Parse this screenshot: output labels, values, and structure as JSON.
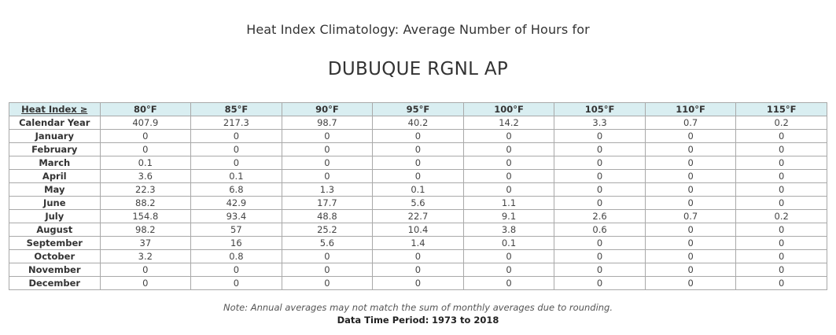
{
  "heading": "Heat Index Climatology: Average Number of Hours for",
  "station": "DUBUQUE RGNL AP",
  "table": {
    "corner_label": "Heat Index ≥",
    "columns": [
      "80°F",
      "85°F",
      "90°F",
      "95°F",
      "100°F",
      "105°F",
      "110°F",
      "115°F"
    ],
    "rows": [
      {
        "label": "Calendar Year",
        "values": [
          "407.9",
          "217.3",
          "98.7",
          "40.2",
          "14.2",
          "3.3",
          "0.7",
          "0.2"
        ]
      },
      {
        "label": "January",
        "values": [
          "0",
          "0",
          "0",
          "0",
          "0",
          "0",
          "0",
          "0"
        ]
      },
      {
        "label": "February",
        "values": [
          "0",
          "0",
          "0",
          "0",
          "0",
          "0",
          "0",
          "0"
        ]
      },
      {
        "label": "March",
        "values": [
          "0.1",
          "0",
          "0",
          "0",
          "0",
          "0",
          "0",
          "0"
        ]
      },
      {
        "label": "April",
        "values": [
          "3.6",
          "0.1",
          "0",
          "0",
          "0",
          "0",
          "0",
          "0"
        ]
      },
      {
        "label": "May",
        "values": [
          "22.3",
          "6.8",
          "1.3",
          "0.1",
          "0",
          "0",
          "0",
          "0"
        ]
      },
      {
        "label": "June",
        "values": [
          "88.2",
          "42.9",
          "17.7",
          "5.6",
          "1.1",
          "0",
          "0",
          "0"
        ]
      },
      {
        "label": "July",
        "values": [
          "154.8",
          "93.4",
          "48.8",
          "22.7",
          "9.1",
          "2.6",
          "0.7",
          "0.2"
        ]
      },
      {
        "label": "August",
        "values": [
          "98.2",
          "57",
          "25.2",
          "10.4",
          "3.8",
          "0.6",
          "0",
          "0"
        ]
      },
      {
        "label": "September",
        "values": [
          "37",
          "16",
          "5.6",
          "1.4",
          "0.1",
          "0",
          "0",
          "0"
        ]
      },
      {
        "label": "October",
        "values": [
          "3.2",
          "0.8",
          "0",
          "0",
          "0",
          "0",
          "0",
          "0"
        ]
      },
      {
        "label": "November",
        "values": [
          "0",
          "0",
          "0",
          "0",
          "0",
          "0",
          "0",
          "0"
        ]
      },
      {
        "label": "December",
        "values": [
          "0",
          "0",
          "0",
          "0",
          "0",
          "0",
          "0",
          "0"
        ]
      }
    ]
  },
  "note": "Note: Annual averages may not match the sum of monthly averages due to rounding.",
  "period": {
    "label": "Data Time Period:",
    "value": "1973 to 2018"
  },
  "colors": {
    "header_background": "#d9eef1",
    "border": "#a9a9a9",
    "text": "#333333"
  }
}
